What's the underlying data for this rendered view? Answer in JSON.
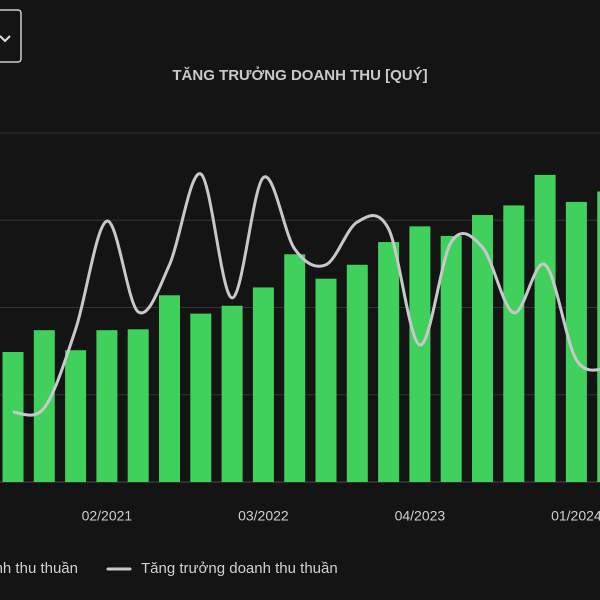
{
  "chart_data": {
    "type": "bar-line",
    "title": "TĂNG TRƯỞNG DOANH THU [QUÝ]",
    "categories": [
      null,
      null,
      null,
      "02/2021",
      null,
      null,
      null,
      null,
      "03/2022",
      null,
      null,
      null,
      null,
      "04/2023",
      null,
      null,
      null,
      null,
      "01/2024",
      null
    ],
    "series": [
      {
        "name": "Doanh thu thuần",
        "type": "bar",
        "color": "#3fd15b",
        "values": [
          1.49,
          1.74,
          1.51,
          1.74,
          1.75,
          2.14,
          1.93,
          2.02,
          2.23,
          2.61,
          2.33,
          2.49,
          2.75,
          2.93,
          2.82,
          3.06,
          3.17,
          3.52,
          3.21,
          3.33
        ]
      },
      {
        "name": "Tăng trưởng doanh thu thuần",
        "type": "line",
        "axis": "y2",
        "color": "#c8c8cc",
        "values": [
          0.8,
          0.85,
          1.75,
          2.99,
          1.95,
          2.49,
          3.53,
          2.11,
          3.49,
          2.67,
          2.49,
          2.98,
          2.9,
          1.57,
          2.75,
          2.69,
          1.94,
          2.49,
          1.4,
          1.3
        ]
      }
    ],
    "ylim": [
      0,
      4
    ],
    "yticks": [
      0,
      1,
      2,
      3,
      4
    ],
    "y2lim": [
      0,
      4
    ],
    "grid": true
  }
}
